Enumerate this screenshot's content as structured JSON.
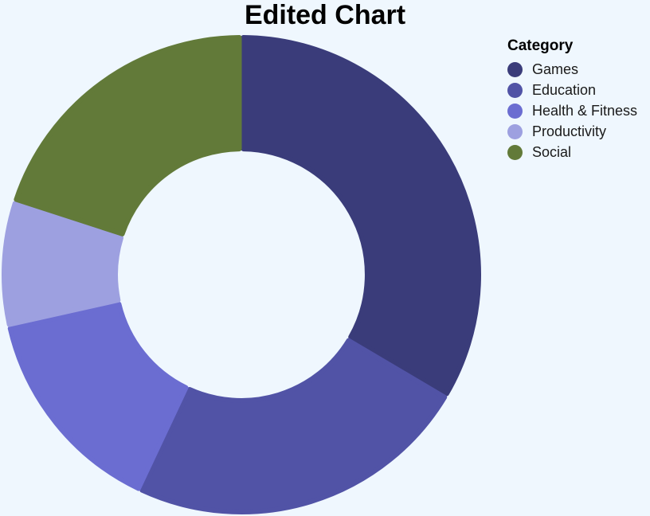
{
  "chart_data": {
    "type": "pie",
    "title": "Edited Chart",
    "hole": 0.53,
    "legend": {
      "title": "Category",
      "position": "top-right"
    },
    "categories": [
      "Games",
      "Education",
      "Health & Fitness",
      "Productivity",
      "Social"
    ],
    "values": [
      33.5,
      23.5,
      14.5,
      8.5,
      20.0
    ],
    "colors": [
      "#3a3c7a",
      "#5153a6",
      "#6b6dd1",
      "#9da0e0",
      "#627a39"
    ]
  }
}
